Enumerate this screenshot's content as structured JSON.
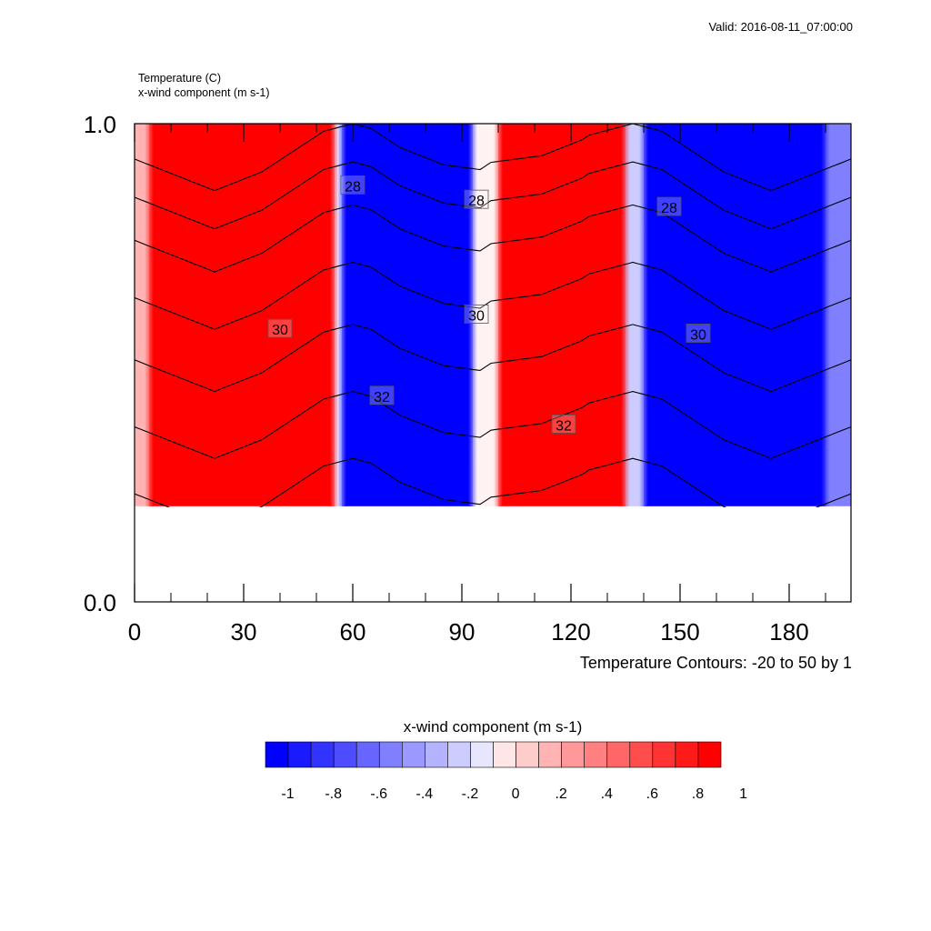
{
  "header": {
    "valid": "Valid: 2016-08-11_07:00:00",
    "field1": "Temperature   (C)",
    "field2": "x-wind component   (m s-1)"
  },
  "footer": {
    "contour_info": "Temperature Contours: -20 to 50 by 1"
  },
  "colorbar": {
    "title": "x-wind component  (m s-1)",
    "labels": [
      "-1",
      "-.8",
      "-.6",
      "-.4",
      "-.2",
      "0",
      ".2",
      ".4",
      ".6",
      ".8",
      "1"
    ],
    "colors": [
      "#0000ff",
      "#1a1aff",
      "#3333ff",
      "#4d4dff",
      "#6666ff",
      "#8080ff",
      "#9999ff",
      "#b3b3ff",
      "#ccccff",
      "#e6e6ff",
      "#ffe6e6",
      "#ffcccc",
      "#ffb3b3",
      "#ff9999",
      "#ff8080",
      "#ff6666",
      "#ff4d4d",
      "#ff3333",
      "#ff1a1a",
      "#ff0000"
    ]
  },
  "chart_data": {
    "type": "heatmap",
    "title": "",
    "xlabel": "",
    "ylabel": "",
    "x_ticks": [
      0,
      30,
      60,
      90,
      120,
      150,
      180
    ],
    "x_tick_labels": [
      "0",
      "30",
      "60",
      "90",
      "120",
      "150",
      "180"
    ],
    "xlim": [
      0,
      197
    ],
    "y_ticks": [
      0.0,
      1.0
    ],
    "y_tick_labels": [
      "0.0",
      "1.0"
    ],
    "ylim": [
      0.0,
      1.0
    ],
    "shaded_field": "x-wind component",
    "shaded_range": [
      -1,
      1
    ],
    "data_bottom_y": 0.2,
    "wind_bands": [
      {
        "x_start": 0,
        "x_end": 4,
        "value": 0.3
      },
      {
        "x_start": 4,
        "x_end": 55,
        "value": 1.0
      },
      {
        "x_start": 55,
        "x_end": 57,
        "value": -0.1
      },
      {
        "x_start": 57,
        "x_end": 93,
        "value": -1.0
      },
      {
        "x_start": 93,
        "x_end": 100,
        "value": 0.05
      },
      {
        "x_start": 100,
        "x_end": 135,
        "value": 1.0
      },
      {
        "x_start": 135,
        "x_end": 140,
        "value": -0.2
      },
      {
        "x_start": 140,
        "x_end": 190,
        "value": -1.0
      },
      {
        "x_start": 190,
        "x_end": 197,
        "value": -0.5
      }
    ],
    "contour_labels": [
      {
        "text": "28",
        "x": 60,
        "y": 0.87
      },
      {
        "text": "28",
        "x": 94,
        "y": 0.84
      },
      {
        "text": "28",
        "x": 147,
        "y": 0.825
      },
      {
        "text": "30",
        "x": 40,
        "y": 0.57
      },
      {
        "text": "30",
        "x": 94,
        "y": 0.6
      },
      {
        "text": "30",
        "x": 155,
        "y": 0.56
      },
      {
        "text": "32",
        "x": 68,
        "y": 0.43
      },
      {
        "text": "32",
        "x": 118,
        "y": 0.37
      }
    ]
  }
}
